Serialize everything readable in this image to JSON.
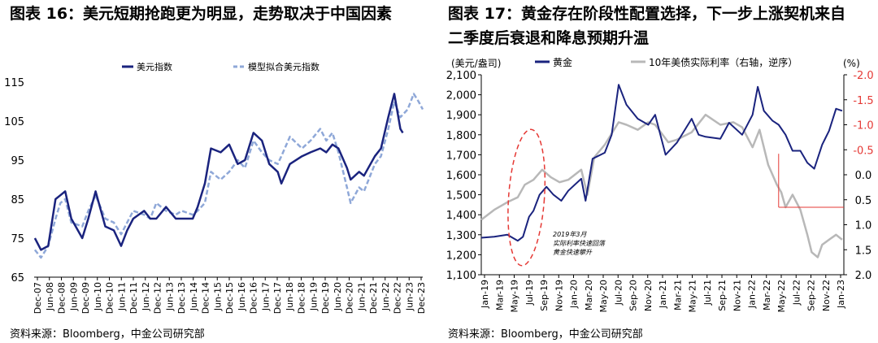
{
  "left": {
    "title": "图表 16：美元短期抢跑更为明显，走势取决于中国因素",
    "source": "资料来源：Bloomberg，中金公司研究部"
  },
  "right": {
    "title_line1": "图表  17：黄金存在阶段性配置选择，下一步上涨契机来自",
    "title_line2": "二季度后衰退和降息预期升温",
    "source": "资料来源：Bloomberg，中金公司研究部"
  },
  "chart_data": [
    {
      "type": "line",
      "ylim": [
        65,
        115
      ],
      "yticks": [
        65,
        75,
        85,
        95,
        105,
        115
      ],
      "xlim": [
        2007.92,
        2023.92
      ],
      "xticks": [
        "Dec-07",
        "Jun-08",
        "Dec-08",
        "Jun-09",
        "Dec-09",
        "Jun-10",
        "Dec-10",
        "Jun-11",
        "Dec-11",
        "Jun-12",
        "Dec-12",
        "Jun-13",
        "Dec-13",
        "Jun-14",
        "Dec-14",
        "Jun-15",
        "Dec-15",
        "Jun-16",
        "Dec-16",
        "Jun-17",
        "Dec-17",
        "Jun-18",
        "Dec-18",
        "Jun-19",
        "Dec-19",
        "Jun-20",
        "Dec-20",
        "Jun-21",
        "Dec-21",
        "Jun-22",
        "Dec-22",
        "Jun-23",
        "Dec-23"
      ],
      "series": [
        {
          "name": "美元指数",
          "color": "#1a237e",
          "style": "solid",
          "points": [
            [
              2007.95,
              75
            ],
            [
              2008.2,
              72
            ],
            [
              2008.5,
              73
            ],
            [
              2008.8,
              85
            ],
            [
              2009.0,
              86
            ],
            [
              2009.2,
              87
            ],
            [
              2009.45,
              80
            ],
            [
              2009.9,
              75
            ],
            [
              2010.15,
              80
            ],
            [
              2010.45,
              87
            ],
            [
              2010.85,
              78
            ],
            [
              2011.2,
              77
            ],
            [
              2011.5,
              73
            ],
            [
              2011.75,
              77
            ],
            [
              2012.0,
              80
            ],
            [
              2012.45,
              82
            ],
            [
              2012.7,
              80
            ],
            [
              2012.95,
              80
            ],
            [
              2013.35,
              83
            ],
            [
              2013.75,
              80
            ],
            [
              2014.0,
              80
            ],
            [
              2014.45,
              80
            ],
            [
              2014.65,
              83
            ],
            [
              2014.95,
              89
            ],
            [
              2015.2,
              98
            ],
            [
              2015.6,
              97
            ],
            [
              2015.95,
              99
            ],
            [
              2016.3,
              94
            ],
            [
              2016.6,
              95
            ],
            [
              2016.95,
              102
            ],
            [
              2017.3,
              100
            ],
            [
              2017.6,
              94
            ],
            [
              2017.95,
              92
            ],
            [
              2018.1,
              89
            ],
            [
              2018.45,
              94
            ],
            [
              2018.95,
              96
            ],
            [
              2019.3,
              97
            ],
            [
              2019.7,
              98
            ],
            [
              2019.95,
              97
            ],
            [
              2020.2,
              99
            ],
            [
              2020.45,
              98
            ],
            [
              2020.8,
              93
            ],
            [
              2020.95,
              90
            ],
            [
              2021.3,
              92
            ],
            [
              2021.5,
              91
            ],
            [
              2021.95,
              96
            ],
            [
              2022.2,
              98
            ],
            [
              2022.5,
              106
            ],
            [
              2022.75,
              112
            ],
            [
              2023.0,
              103
            ],
            [
              2023.1,
              102
            ]
          ]
        },
        {
          "name": "模型拟合美元指数",
          "color": "#8fa8d8",
          "style": "dashed",
          "points": [
            [
              2007.95,
              72
            ],
            [
              2008.2,
              70
            ],
            [
              2008.5,
              73
            ],
            [
              2008.8,
              80
            ],
            [
              2009.0,
              84
            ],
            [
              2009.2,
              85
            ],
            [
              2009.45,
              79
            ],
            [
              2009.9,
              78
            ],
            [
              2010.15,
              82
            ],
            [
              2010.45,
              86
            ],
            [
              2010.85,
              80
            ],
            [
              2011.2,
              79
            ],
            [
              2011.5,
              76
            ],
            [
              2011.75,
              79
            ],
            [
              2012.0,
              82
            ],
            [
              2012.45,
              81
            ],
            [
              2012.7,
              80
            ],
            [
              2012.95,
              84
            ],
            [
              2013.35,
              82
            ],
            [
              2013.75,
              81
            ],
            [
              2014.0,
              82
            ],
            [
              2014.45,
              81
            ],
            [
              2014.65,
              82
            ],
            [
              2014.95,
              84
            ],
            [
              2015.2,
              92
            ],
            [
              2015.6,
              90
            ],
            [
              2015.95,
              92
            ],
            [
              2016.3,
              95
            ],
            [
              2016.6,
              93
            ],
            [
              2016.95,
              100
            ],
            [
              2017.3,
              97
            ],
            [
              2017.6,
              95
            ],
            [
              2017.95,
              94
            ],
            [
              2018.1,
              96
            ],
            [
              2018.45,
              101
            ],
            [
              2018.95,
              98
            ],
            [
              2019.3,
              100
            ],
            [
              2019.7,
              103
            ],
            [
              2019.95,
              100
            ],
            [
              2020.2,
              102
            ],
            [
              2020.45,
              97
            ],
            [
              2020.8,
              88
            ],
            [
              2020.95,
              84
            ],
            [
              2021.3,
              88
            ],
            [
              2021.5,
              87
            ],
            [
              2021.95,
              94
            ],
            [
              2022.2,
              96
            ],
            [
              2022.5,
              103
            ],
            [
              2022.75,
              110
            ],
            [
              2023.0,
              106
            ],
            [
              2023.3,
              108
            ],
            [
              2023.55,
              112
            ],
            [
              2023.75,
              110
            ],
            [
              2023.92,
              108
            ]
          ]
        }
      ]
    },
    {
      "type": "line",
      "ylabel_left": "(美元/盎司)",
      "ylabel_right": "(%)",
      "ylim_left": [
        1100,
        2100
      ],
      "ylim_right": [
        -2.0,
        2.0
      ],
      "right_axis_inverted": true,
      "yticks_left": [
        "1,100",
        "1,200",
        "1,300",
        "1,400",
        "1,500",
        "1,600",
        "1,700",
        "1,800",
        "1,900",
        "2,000",
        "2,100"
      ],
      "yticks_right": [
        "-2.0",
        "-1.5",
        "-1.0",
        "-0.5",
        "0.0",
        "0.5",
        "1.0",
        "1.5",
        "2.0"
      ],
      "xlim": [
        2019.0,
        2023.17
      ],
      "xticks": [
        "Jan-19",
        "Mar-19",
        "May-19",
        "Jul-19",
        "Sep-19",
        "Nov-19",
        "Jan-20",
        "Mar-20",
        "May-20",
        "Jul-20",
        "Sep-20",
        "Nov-20",
        "Jan-21",
        "Mar-21",
        "May-21",
        "Jul-21",
        "Sep-21",
        "Nov-21",
        "Jan-22",
        "Mar-22",
        "May-22",
        "Jul-22",
        "Sep-22",
        "Nov-22",
        "Jan-23"
      ],
      "annotation": [
        "2019年3月",
        "实际利率快速回落",
        "黄金快速攀升"
      ],
      "series": [
        {
          "name": "黄金",
          "axis": "left",
          "color": "#1a237e",
          "points": [
            [
              2019.0,
              1285
            ],
            [
              2019.15,
              1290
            ],
            [
              2019.3,
              1300
            ],
            [
              2019.38,
              1280
            ],
            [
              2019.42,
              1270
            ],
            [
              2019.48,
              1290
            ],
            [
              2019.55,
              1390
            ],
            [
              2019.6,
              1420
            ],
            [
              2019.67,
              1500
            ],
            [
              2019.75,
              1540
            ],
            [
              2019.83,
              1500
            ],
            [
              2019.92,
              1470
            ],
            [
              2020.0,
              1520
            ],
            [
              2020.15,
              1580
            ],
            [
              2020.2,
              1470
            ],
            [
              2020.28,
              1680
            ],
            [
              2020.42,
              1710
            ],
            [
              2020.5,
              1800
            ],
            [
              2020.58,
              2050
            ],
            [
              2020.67,
              1950
            ],
            [
              2020.8,
              1880
            ],
            [
              2020.92,
              1850
            ],
            [
              2021.0,
              1900
            ],
            [
              2021.12,
              1700
            ],
            [
              2021.25,
              1760
            ],
            [
              2021.42,
              1880
            ],
            [
              2021.5,
              1800
            ],
            [
              2021.58,
              1790
            ],
            [
              2021.75,
              1780
            ],
            [
              2021.85,
              1860
            ],
            [
              2022.0,
              1800
            ],
            [
              2022.12,
              1900
            ],
            [
              2022.18,
              2040
            ],
            [
              2022.25,
              1920
            ],
            [
              2022.35,
              1870
            ],
            [
              2022.42,
              1850
            ],
            [
              2022.5,
              1800
            ],
            [
              2022.58,
              1720
            ],
            [
              2022.67,
              1720
            ],
            [
              2022.75,
              1660
            ],
            [
              2022.83,
              1630
            ],
            [
              2022.92,
              1750
            ],
            [
              2023.0,
              1820
            ],
            [
              2023.08,
              1930
            ],
            [
              2023.15,
              1920
            ]
          ]
        },
        {
          "name": "10年美债实际利率（右轴，逆序）",
          "axis": "right",
          "color": "#b8b8b8",
          "points": [
            [
              2019.0,
              0.9
            ],
            [
              2019.15,
              0.7
            ],
            [
              2019.3,
              0.55
            ],
            [
              2019.42,
              0.45
            ],
            [
              2019.5,
              0.2
            ],
            [
              2019.6,
              0.1
            ],
            [
              2019.7,
              -0.1
            ],
            [
              2019.8,
              0.05
            ],
            [
              2019.9,
              0.15
            ],
            [
              2020.0,
              0.1
            ],
            [
              2020.15,
              -0.1
            ],
            [
              2020.22,
              0.4
            ],
            [
              2020.3,
              -0.35
            ],
            [
              2020.42,
              -0.6
            ],
            [
              2020.58,
              -1.05
            ],
            [
              2020.67,
              -1.0
            ],
            [
              2020.8,
              -0.9
            ],
            [
              2020.92,
              -1.05
            ],
            [
              2021.0,
              -1.0
            ],
            [
              2021.15,
              -0.65
            ],
            [
              2021.25,
              -0.7
            ],
            [
              2021.42,
              -0.85
            ],
            [
              2021.58,
              -1.2
            ],
            [
              2021.75,
              -1.0
            ],
            [
              2021.9,
              -1.05
            ],
            [
              2022.0,
              -0.95
            ],
            [
              2022.12,
              -0.55
            ],
            [
              2022.2,
              -0.9
            ],
            [
              2022.3,
              -0.2
            ],
            [
              2022.4,
              0.2
            ],
            [
              2022.45,
              0.35
            ],
            [
              2022.5,
              0.65
            ],
            [
              2022.58,
              0.4
            ],
            [
              2022.67,
              0.7
            ],
            [
              2022.75,
              1.2
            ],
            [
              2022.8,
              1.55
            ],
            [
              2022.87,
              1.65
            ],
            [
              2022.92,
              1.4
            ],
            [
              2023.0,
              1.3
            ],
            [
              2023.08,
              1.2
            ],
            [
              2023.15,
              1.3
            ]
          ]
        }
      ]
    }
  ]
}
